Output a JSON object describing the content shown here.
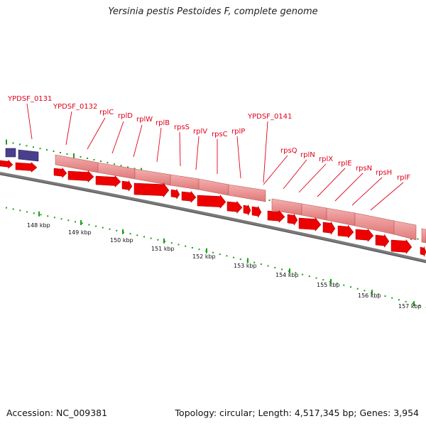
{
  "title": "Yersinia pestis Pestoides F, complete genome",
  "footer": {
    "accession_label": "Accession:",
    "accession": "NC_009381",
    "topology_label": "Topology:",
    "topology": "circular",
    "length_label": "Length:",
    "length": "4,517,345 bp",
    "genes_label": "Genes:",
    "genes": "3,954"
  },
  "colors": {
    "cds_arrow": "#ee0000",
    "rrna_box": "#e88a8a",
    "other_box": "#4a3f8c",
    "tick": "#1a9e1a",
    "backbone": "#7a7a7a",
    "label": "#e0001a"
  },
  "scale": {
    "unit": "kbp",
    "ticks": [
      "148 kbp",
      "149 kbp",
      "150 kbp",
      "151 kbp",
      "152 kbp",
      "153 kbp",
      "154 kbp",
      "155 kbp",
      "156 kbp",
      "157 kbp"
    ]
  },
  "genes": [
    {
      "name": "YPDSF_0131"
    },
    {
      "name": "YPDSF_0132"
    },
    {
      "name": "rplC"
    },
    {
      "name": "rplD"
    },
    {
      "name": "rplW"
    },
    {
      "name": "rplB"
    },
    {
      "name": "rpsS"
    },
    {
      "name": "rplV"
    },
    {
      "name": "rpsC"
    },
    {
      "name": "rplP"
    },
    {
      "name": "YPDSF_0141"
    },
    {
      "name": "rpsQ"
    },
    {
      "name": "rplN"
    },
    {
      "name": "rplX"
    },
    {
      "name": "rplE"
    },
    {
      "name": "rpsN"
    },
    {
      "name": "rpsH"
    },
    {
      "name": "rplF"
    }
  ]
}
